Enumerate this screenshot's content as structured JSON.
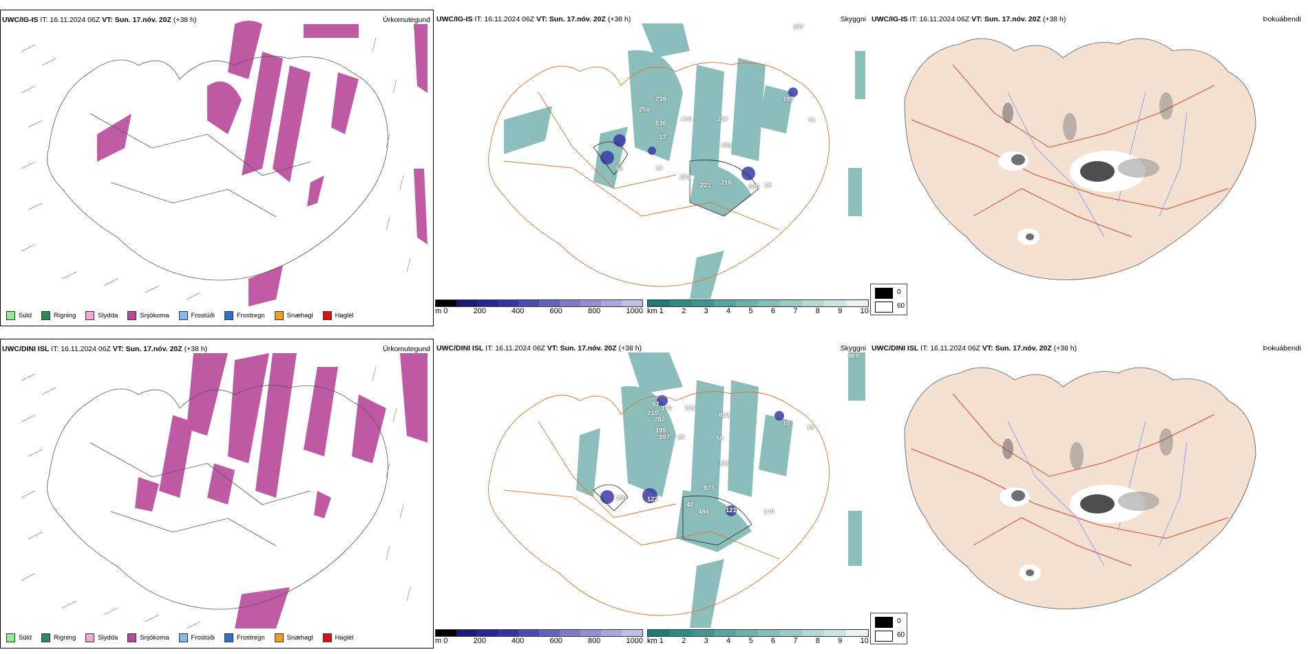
{
  "rows": [
    {
      "model": "UWC/IG-IS",
      "it_label": "IT:",
      "it_value": "16.11.2024 06Z",
      "vt_label": "VT:",
      "vt_value": "Sun. 17.nóv. 20Z",
      "lead": "(+38 h)",
      "cloud_labels": [
        "239",
        "258",
        "536",
        "470",
        "227",
        "488",
        "195",
        "98",
        "13",
        "253",
        "221",
        "216",
        "205",
        "15",
        "41",
        "397",
        "13"
      ]
    },
    {
      "model": "UWC/DINI ISL",
      "it_label": "IT:",
      "it_value": "16.11.2024 06Z",
      "vt_label": "VT:",
      "vt_value": "Sun. 17.nóv. 20Z",
      "lead": "(+38 h)",
      "cloud_labels": [
        "57",
        "370",
        "705",
        "210",
        "282",
        "822",
        "195",
        "397",
        "29",
        "58",
        "10",
        "15",
        "191",
        "186",
        "122",
        "973",
        "42",
        "484",
        "121",
        "140",
        "969"
      ]
    }
  ],
  "panel_titles": {
    "precip": "Úrkomutegund",
    "cloud": "Skyggni",
    "fog": "Þokuábendi"
  },
  "precip_legend": [
    {
      "label": "Súld",
      "color": "#90ee90"
    },
    {
      "label": "Rigning",
      "color": "#2e8b57"
    },
    {
      "label": "Slydda",
      "color": "#f4a6d7"
    },
    {
      "label": "Snjókoma",
      "color": "#b8489a"
    },
    {
      "label": "Frostúði",
      "color": "#87b8ea"
    },
    {
      "label": "Frostregn",
      "color": "#2f6fc4"
    },
    {
      "label": "Snæhagl",
      "color": "#f0a020"
    },
    {
      "label": "Haglél",
      "color": "#e01010"
    }
  ],
  "cloud_base_scale": {
    "unit": "m",
    "ticks": [
      "0",
      "200",
      "400",
      "600",
      "800",
      "1000"
    ]
  },
  "visibility_scale": {
    "unit": "km",
    "ticks": [
      "1",
      "2",
      "3",
      "4",
      "5",
      "6",
      "7",
      "8",
      "9",
      "10"
    ]
  },
  "fog_scale": {
    "ticks": [
      "0",
      "60"
    ]
  },
  "colors": {
    "snow": "#b8489a",
    "cloud": "#2e8a84",
    "lowcloud": "#3a3aa8",
    "roads": "#e07020",
    "land": "#f4e1d2",
    "rivers": "#7a8cf0"
  }
}
